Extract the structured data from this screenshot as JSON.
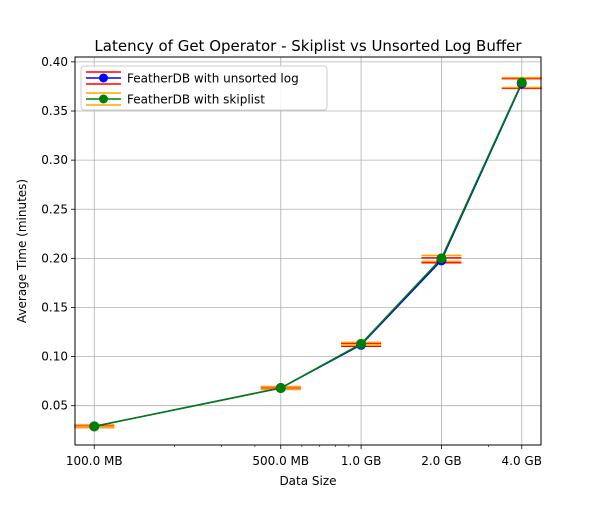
{
  "chart_data": {
    "type": "line",
    "title": "Latency of Get Operator - Skiplist vs Unsorted Log Buffer",
    "xlabel": "Data Size",
    "ylabel": "Average Time (minutes)",
    "x_scale": "log",
    "x_values_mb": [
      100,
      500,
      1000,
      2000,
      4000
    ],
    "x_tick_labels": [
      "100.0 MB",
      "500.0 MB",
      "1.0 GB",
      "2.0 GB",
      "4.0 GB"
    ],
    "yticks": [
      0.05,
      0.1,
      0.15,
      0.2,
      0.25,
      0.3,
      0.35,
      0.4
    ],
    "ytick_labels": [
      "0.05",
      "0.10",
      "0.15",
      "0.20",
      "0.25",
      "0.30",
      "0.35",
      "0.40"
    ],
    "ylim": [
      0.01,
      0.405
    ],
    "grid": true,
    "legend_position": "upper-left",
    "series": [
      {
        "name": "FeatherDB with unsorted log",
        "color": "#0000ff",
        "errorbar_color": "#ff0000",
        "values": [
          0.029,
          0.068,
          0.112,
          0.198,
          0.378
        ],
        "error_y": [
          0.001,
          0.001,
          0.0015,
          0.0025,
          0.005
        ]
      },
      {
        "name": "FeatherDB with skiplist",
        "color": "#008000",
        "errorbar_color": "#ffa500",
        "values": [
          0.029,
          0.068,
          0.113,
          0.2,
          0.379
        ],
        "error_y": [
          0.0015,
          0.0015,
          0.0015,
          0.003,
          0.005
        ]
      }
    ]
  }
}
